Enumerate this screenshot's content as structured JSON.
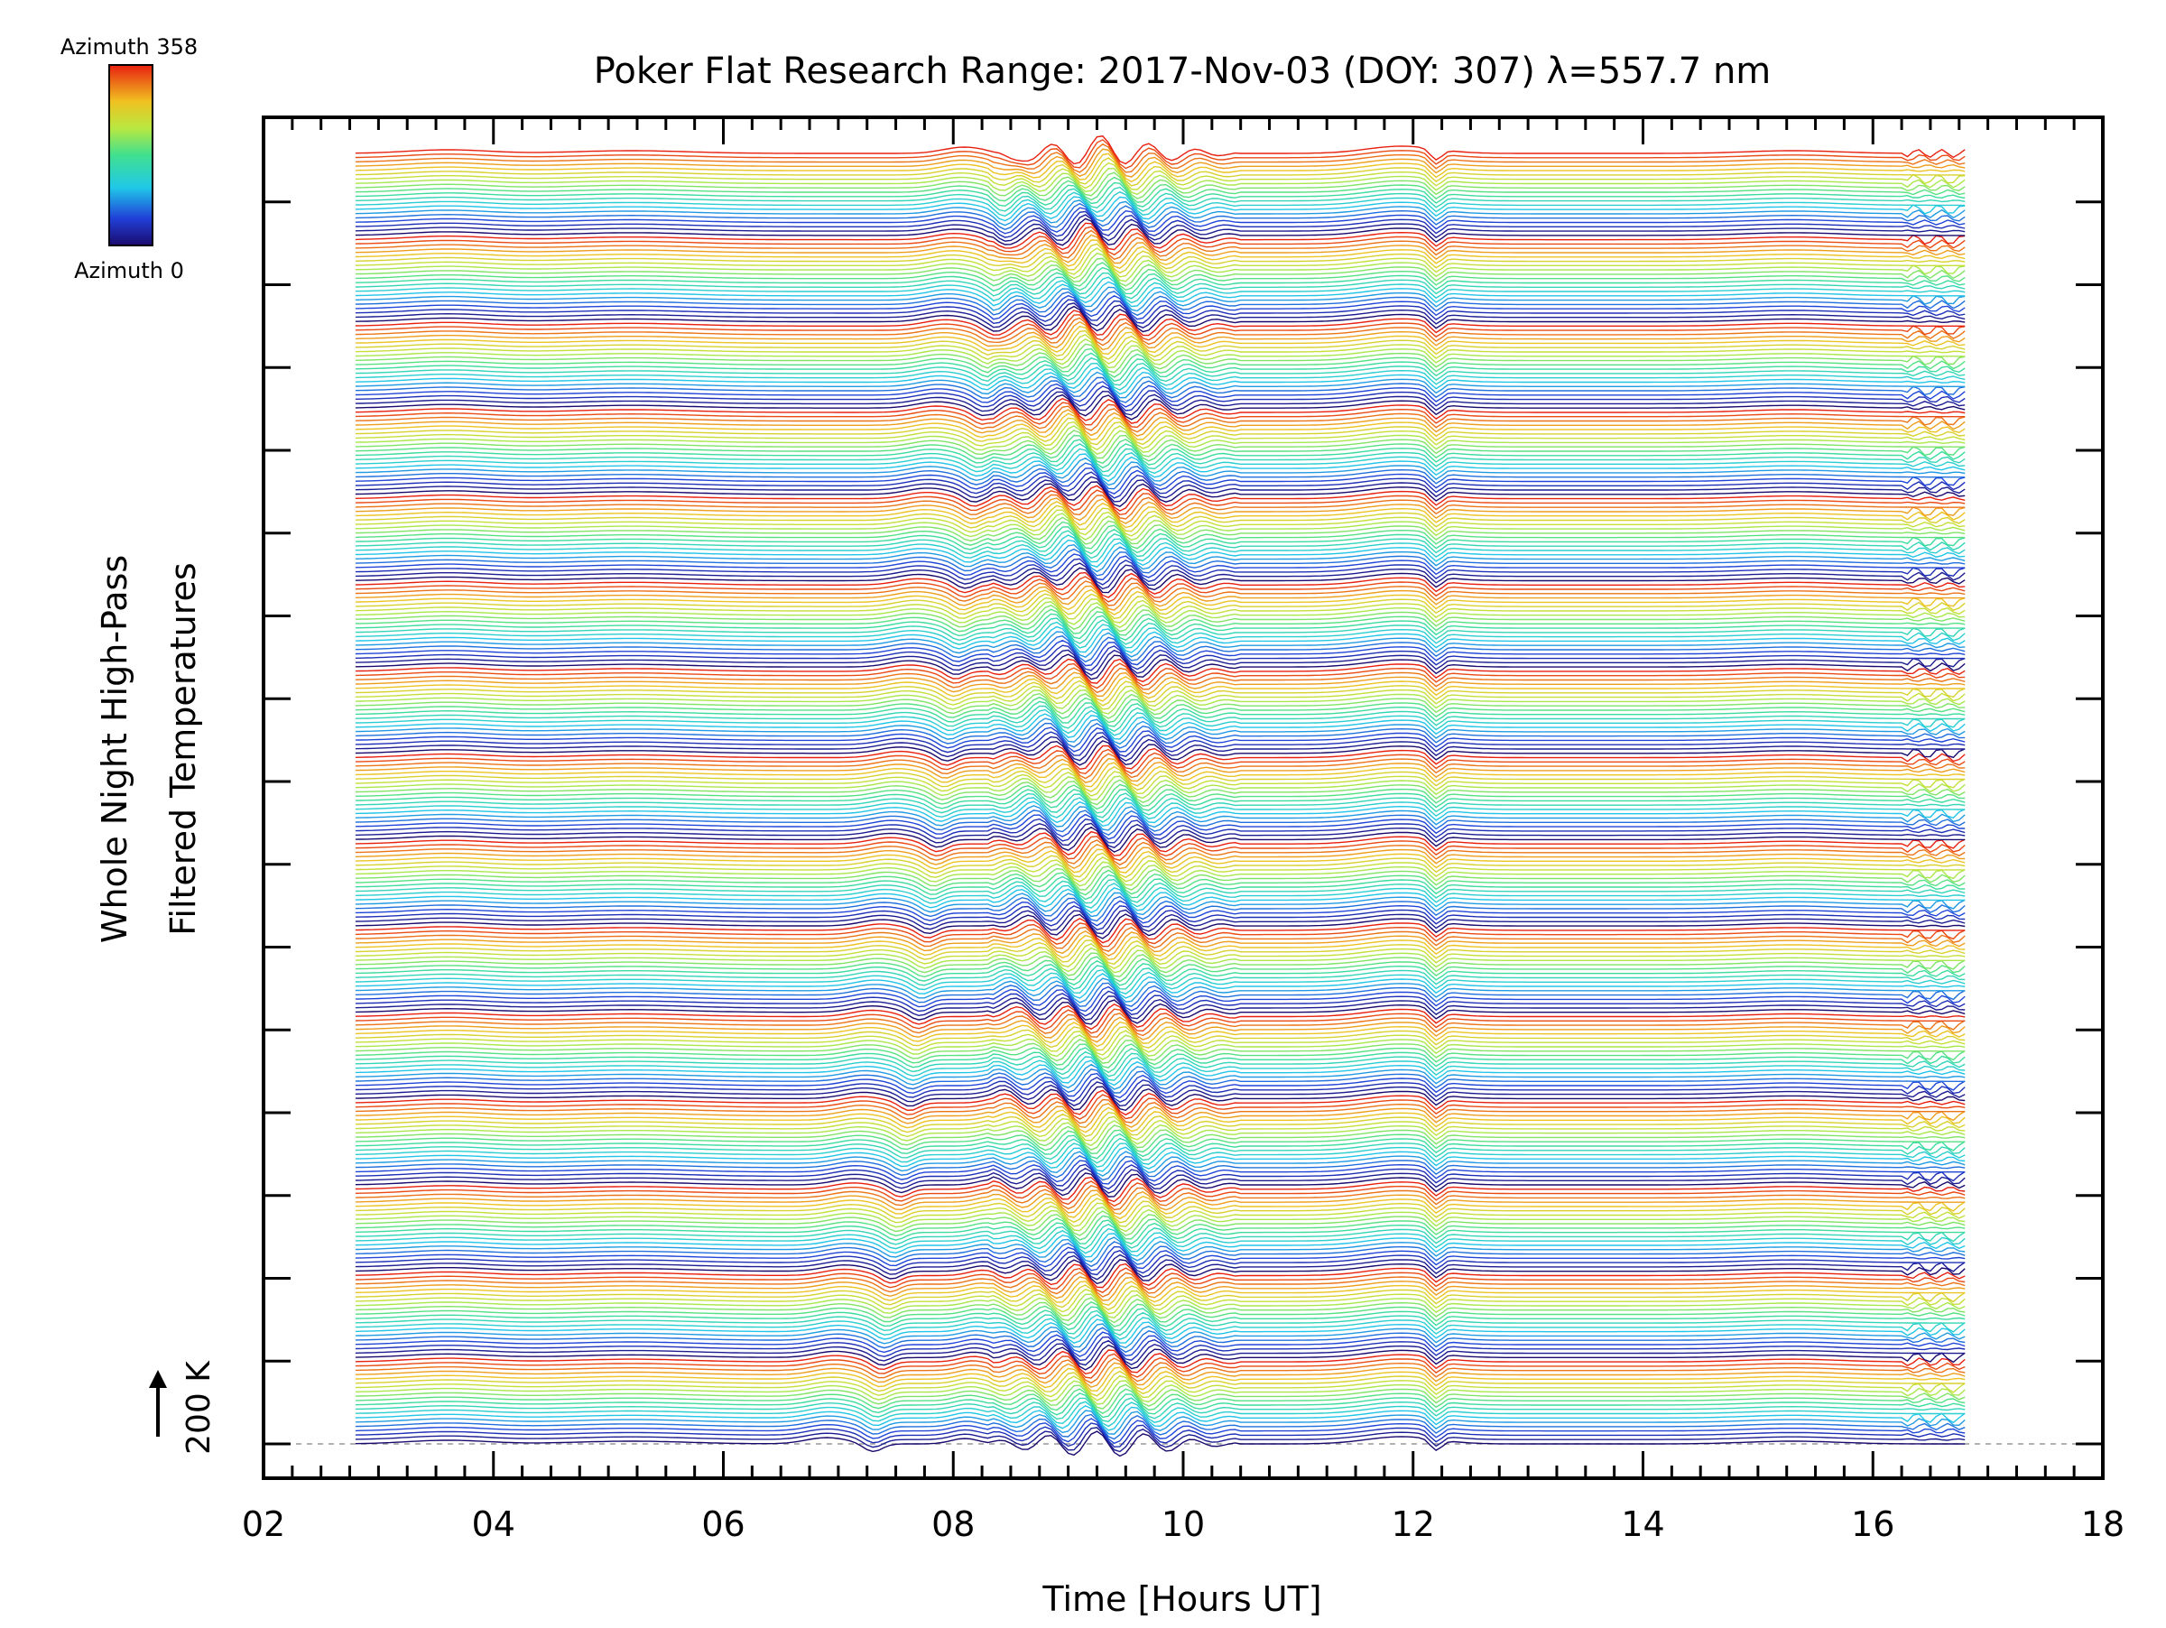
{
  "chart_data": {
    "type": "line",
    "title": "Poker Flat Research Range: 2017-Nov-03 (DOY: 307) λ=557.7 nm",
    "xlabel": "Time [Hours UT]",
    "ylabel_line1": "Whole Night High-Pass",
    "ylabel_line2": "Filtered Temperatures",
    "xlim": [
      2,
      18
    ],
    "x_ticks": [
      "02",
      "04",
      "06",
      "08",
      "10",
      "12",
      "14",
      "16",
      "18"
    ],
    "x_tick_values": [
      2,
      4,
      6,
      8,
      10,
      12,
      14,
      16,
      18
    ],
    "x_minor_step": 0.25,
    "y_major_tick_count": 16,
    "scale_bar_label": "200 K",
    "colorbar": {
      "top_label": "Azimuth 358",
      "bottom_label": "Azimuth 0",
      "min": 0,
      "max": 358,
      "colormap": "rainbow (blue → cyan → green → yellow → red)"
    },
    "series_summary": {
      "trace_count": 300,
      "time_start": 2.8,
      "time_end": 16.8,
      "color_cycle_traces": 20,
      "vertical_offset_between_traces_K": 10,
      "wave_features_hours": [
        6.9,
        7.3,
        8.1,
        8.7,
        9.0,
        9.4,
        9.8,
        10.2,
        11.9,
        12.2
      ]
    },
    "colors": {
      "axis": "#000000",
      "background": "#ffffff",
      "baseline_dash": "#999999"
    }
  }
}
